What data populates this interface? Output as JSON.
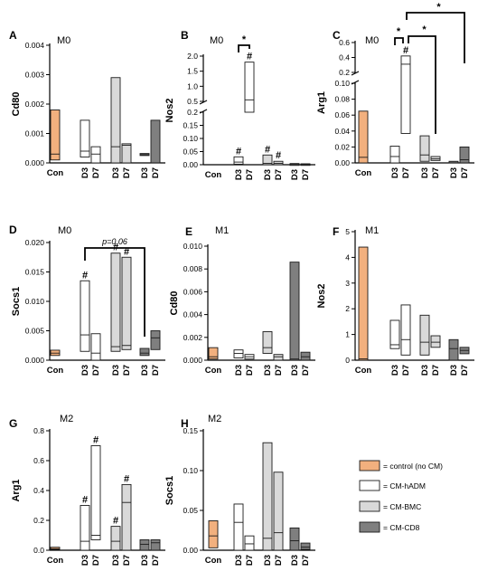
{
  "colors": {
    "control (no CM)": "#F2B07E",
    "CM-hADM": "#FFFFFF",
    "CM-BMC": "#D9D9D9",
    "CM-CD8": "#7F7F7F",
    "stroke": "#1a1a1a"
  },
  "legend": [
    {
      "group": "control (no CM)",
      "text": "= control (no CM)"
    },
    {
      "group": "CM-hADM",
      "text": "= CM-hADM"
    },
    {
      "group": "CM-BMC",
      "text": "= CM-BMC"
    },
    {
      "group": "CM-CD8",
      "text": "= CM-CD8"
    }
  ],
  "x_categories": [
    "Con",
    "D3",
    "D7",
    "D3",
    "D7",
    "D3",
    "D7"
  ],
  "chart_data": [
    {
      "panel": "A",
      "condition": "M0",
      "type": "bar",
      "ylabel": "Cd80",
      "ylim": [
        0,
        0.004
      ],
      "yticks": [
        "0.000",
        "0.001",
        "0.002",
        "0.003",
        "0.004"
      ],
      "series_floating_bars": [
        {
          "group": "control (no CM)",
          "x": "Con",
          "min": 0.0001,
          "median": 0.0003,
          "max": 0.0018
        },
        {
          "group": "CM-hADM",
          "x": "D3",
          "min": 0.0002,
          "median": 0.0004,
          "max": 0.00145
        },
        {
          "group": "CM-hADM",
          "x": "D7",
          "min": 0.0,
          "median": 0.0003,
          "max": 0.00055
        },
        {
          "group": "CM-BMC",
          "x": "D3",
          "min": 0.0,
          "median": 0.00055,
          "max": 0.0029
        },
        {
          "group": "CM-BMC",
          "x": "D7",
          "min": 0.0,
          "median": 0.0006,
          "max": 0.00065
        },
        {
          "group": "CM-CD8",
          "x": "D3",
          "min": 0.00025,
          "median": 0.00028,
          "max": 0.00032
        },
        {
          "group": "CM-CD8",
          "x": "D7",
          "min": 0.0,
          "median": 0.0,
          "max": 0.00145
        }
      ]
    },
    {
      "panel": "B",
      "condition": "M0",
      "type": "bar",
      "ylabel": "Nos2",
      "ylim_lower": [
        0,
        0.2
      ],
      "ylim_upper": [
        0.5,
        2.0
      ],
      "yticks": [
        "0.00",
        "0.05",
        "0.10",
        "0.15",
        "0.2",
        "0.5",
        "1.0",
        "1.5",
        "2.0"
      ],
      "series_floating_bars": [
        {
          "group": "CM-hADM",
          "x": "D3",
          "min": 0.002,
          "median": 0.01,
          "max": 0.03,
          "annotation": "#"
        },
        {
          "group": "CM-hADM",
          "x": "D7",
          "min": 0.2,
          "median": 0.55,
          "max": 1.8,
          "annotation": "#"
        },
        {
          "group": "CM-BMC",
          "x": "D3",
          "min": 0.0,
          "median": 0.005,
          "max": 0.037,
          "annotation": "#"
        },
        {
          "group": "CM-BMC",
          "x": "D7",
          "min": 0.0,
          "median": 0.005,
          "max": 0.013,
          "annotation": "#"
        },
        {
          "group": "CM-CD8",
          "x": "D3",
          "min": 0.0,
          "median": 0.001,
          "max": 0.002
        },
        {
          "group": "CM-CD8",
          "x": "D7",
          "min": 0.0,
          "median": 0.0005,
          "max": 0.001
        }
      ],
      "significance": [
        {
          "text": "*",
          "from": "D3",
          "to": "D7"
        }
      ]
    },
    {
      "panel": "C",
      "condition": "M0",
      "type": "bar",
      "ylabel": "Arg1",
      "ylim_lower": [
        0,
        0.1
      ],
      "ylim_upper": [
        0.2,
        0.6
      ],
      "yticks": [
        "0.00",
        "0.02",
        "0.04",
        "0.06",
        "0.08",
        "0.10",
        "0.2",
        "0.4",
        "0.6"
      ],
      "series_floating_bars": [
        {
          "group": "control (no CM)",
          "x": "Con",
          "min": 0.0,
          "median": 0.007,
          "max": 0.065
        },
        {
          "group": "CM-hADM",
          "x": "D3",
          "min": 0.0,
          "median": 0.008,
          "max": 0.021
        },
        {
          "group": "CM-hADM",
          "x": "D7",
          "min": 0.037,
          "median": 0.31,
          "max": 0.42,
          "annotation": "#"
        },
        {
          "group": "CM-BMC",
          "x": "D3",
          "min": 0.002,
          "median": 0.01,
          "max": 0.034
        },
        {
          "group": "CM-BMC",
          "x": "D7",
          "min": 0.003,
          "median": 0.005,
          "max": 0.008
        },
        {
          "group": "CM-CD8",
          "x": "D3",
          "min": 0.0,
          "median": 0.0,
          "max": 0.002
        },
        {
          "group": "CM-CD8",
          "x": "D7",
          "min": 0.0,
          "median": 0.004,
          "max": 0.02
        }
      ],
      "significance": [
        {
          "text": "*"
        },
        {
          "text": "*"
        },
        {
          "text": "*"
        }
      ]
    },
    {
      "panel": "D",
      "condition": "M0",
      "type": "bar",
      "ylabel": "Socs1",
      "ylim": [
        0,
        0.02
      ],
      "yticks": [
        "0.000",
        "0.005",
        "0.010",
        "0.015",
        "0.020"
      ],
      "series_floating_bars": [
        {
          "group": "control (no CM)",
          "x": "Con",
          "min": 0.0008,
          "median": 0.0012,
          "max": 0.0017
        },
        {
          "group": "CM-hADM",
          "x": "D3",
          "min": 0.0015,
          "median": 0.0043,
          "max": 0.0135,
          "annotation": "#"
        },
        {
          "group": "CM-hADM",
          "x": "D7",
          "min": 0.0,
          "median": 0.0012,
          "max": 0.0045
        },
        {
          "group": "CM-BMC",
          "x": "D3",
          "min": 0.0015,
          "median": 0.0023,
          "max": 0.0182,
          "annotation": "#"
        },
        {
          "group": "CM-BMC",
          "x": "D7",
          "min": 0.0018,
          "median": 0.0025,
          "max": 0.0175,
          "annotation": "#"
        },
        {
          "group": "CM-CD8",
          "x": "D3",
          "min": 0.0008,
          "median": 0.0012,
          "max": 0.002
        },
        {
          "group": "CM-CD8",
          "x": "D7",
          "min": 0.0018,
          "median": 0.0038,
          "max": 0.005
        }
      ],
      "significance": [
        {
          "text": "p=0.06",
          "from": "hADM D3",
          "to": "CD8 D3"
        }
      ]
    },
    {
      "panel": "E",
      "condition": "M1",
      "type": "bar",
      "ylabel": "Cd80",
      "ylim": [
        0,
        0.01
      ],
      "yticks": [
        "0.000",
        "0.002",
        "0.004",
        "0.006",
        "0.008",
        "0.010"
      ],
      "series_floating_bars": [
        {
          "group": "control (no CM)",
          "x": "Con",
          "min": 0.0001,
          "median": 0.0003,
          "max": 0.0011
        },
        {
          "group": "CM-hADM",
          "x": "D3",
          "min": 0.0002,
          "median": 0.0006,
          "max": 0.0009
        },
        {
          "group": "CM-hADM",
          "x": "D7",
          "min": 0.0001,
          "median": 0.0003,
          "max": 0.0005
        },
        {
          "group": "CM-BMC",
          "x": "D3",
          "min": 0.0006,
          "median": 0.0011,
          "max": 0.0025
        },
        {
          "group": "CM-BMC",
          "x": "D7",
          "min": 0.0,
          "median": 0.0003,
          "max": 0.0005
        },
        {
          "group": "CM-CD8",
          "x": "D3",
          "min": 0.0,
          "median": 0.0001,
          "max": 0.0086
        },
        {
          "group": "CM-CD8",
          "x": "D7",
          "min": 0.0,
          "median": 0.0003,
          "max": 0.0007
        }
      ]
    },
    {
      "panel": "F",
      "condition": "M1",
      "type": "bar",
      "ylabel": "Nos2",
      "ylim": [
        0,
        5
      ],
      "yticks": [
        "0",
        "1",
        "2",
        "3",
        "4",
        "5"
      ],
      "series_floating_bars": [
        {
          "group": "control (no CM)",
          "x": "Con",
          "min": 0.0,
          "median": 0.05,
          "max": 4.4
        },
        {
          "group": "CM-hADM",
          "x": "D3",
          "min": 0.45,
          "median": 0.6,
          "max": 1.55
        },
        {
          "group": "CM-hADM",
          "x": "D7",
          "min": 0.2,
          "median": 0.8,
          "max": 2.15
        },
        {
          "group": "CM-BMC",
          "x": "D3",
          "min": 0.2,
          "median": 0.7,
          "max": 1.75
        },
        {
          "group": "CM-BMC",
          "x": "D7",
          "min": 0.5,
          "median": 0.7,
          "max": 0.95
        },
        {
          "group": "CM-CD8",
          "x": "D3",
          "min": 0.0,
          "median": 0.45,
          "max": 0.8
        },
        {
          "group": "CM-CD8",
          "x": "D7",
          "min": 0.25,
          "median": 0.38,
          "max": 0.5
        }
      ]
    },
    {
      "panel": "G",
      "condition": "M2",
      "type": "bar",
      "ylabel": "Arg1",
      "ylim": [
        0,
        0.8
      ],
      "yticks": [
        "0.0",
        "0.2",
        "0.4",
        "0.6",
        "0.8"
      ],
      "series_floating_bars": [
        {
          "group": "control (no CM)",
          "x": "Con",
          "min": 0.005,
          "median": 0.01,
          "max": 0.02
        },
        {
          "group": "CM-hADM",
          "x": "D3",
          "min": 0.0,
          "median": 0.06,
          "max": 0.3,
          "annotation": "#"
        },
        {
          "group": "CM-hADM",
          "x": "D7",
          "min": 0.07,
          "median": 0.1,
          "max": 0.7,
          "annotation": "#"
        },
        {
          "group": "CM-BMC",
          "x": "D3",
          "min": 0.0,
          "median": 0.06,
          "max": 0.16,
          "annotation": "#"
        },
        {
          "group": "CM-BMC",
          "x": "D7",
          "min": 0.0,
          "median": 0.32,
          "max": 0.44,
          "annotation": "#"
        },
        {
          "group": "CM-CD8",
          "x": "D3",
          "min": 0.0,
          "median": 0.04,
          "max": 0.07
        },
        {
          "group": "CM-CD8",
          "x": "D7",
          "min": 0.0,
          "median": 0.05,
          "max": 0.07
        }
      ]
    },
    {
      "panel": "H",
      "condition": "M2",
      "type": "bar",
      "ylabel": "Socs1",
      "ylim": [
        0,
        0.15
      ],
      "yticks": [
        "0.00",
        "0.05",
        "0.10",
        "0.15"
      ],
      "series_floating_bars": [
        {
          "group": "control (no CM)",
          "x": "Con",
          "min": 0.003,
          "median": 0.018,
          "max": 0.037
        },
        {
          "group": "CM-hADM",
          "x": "D3",
          "min": 0.0,
          "median": 0.035,
          "max": 0.058
        },
        {
          "group": "CM-hADM",
          "x": "D7",
          "min": 0.0,
          "median": 0.008,
          "max": 0.018
        },
        {
          "group": "CM-BMC",
          "x": "D3",
          "min": 0.0,
          "median": 0.015,
          "max": 0.135
        },
        {
          "group": "CM-BMC",
          "x": "D7",
          "min": 0.0,
          "median": 0.022,
          "max": 0.098
        },
        {
          "group": "CM-CD8",
          "x": "D3",
          "min": 0.0,
          "median": 0.012,
          "max": 0.028
        },
        {
          "group": "CM-CD8",
          "x": "D7",
          "min": 0.001,
          "median": 0.004,
          "max": 0.009
        }
      ]
    }
  ]
}
